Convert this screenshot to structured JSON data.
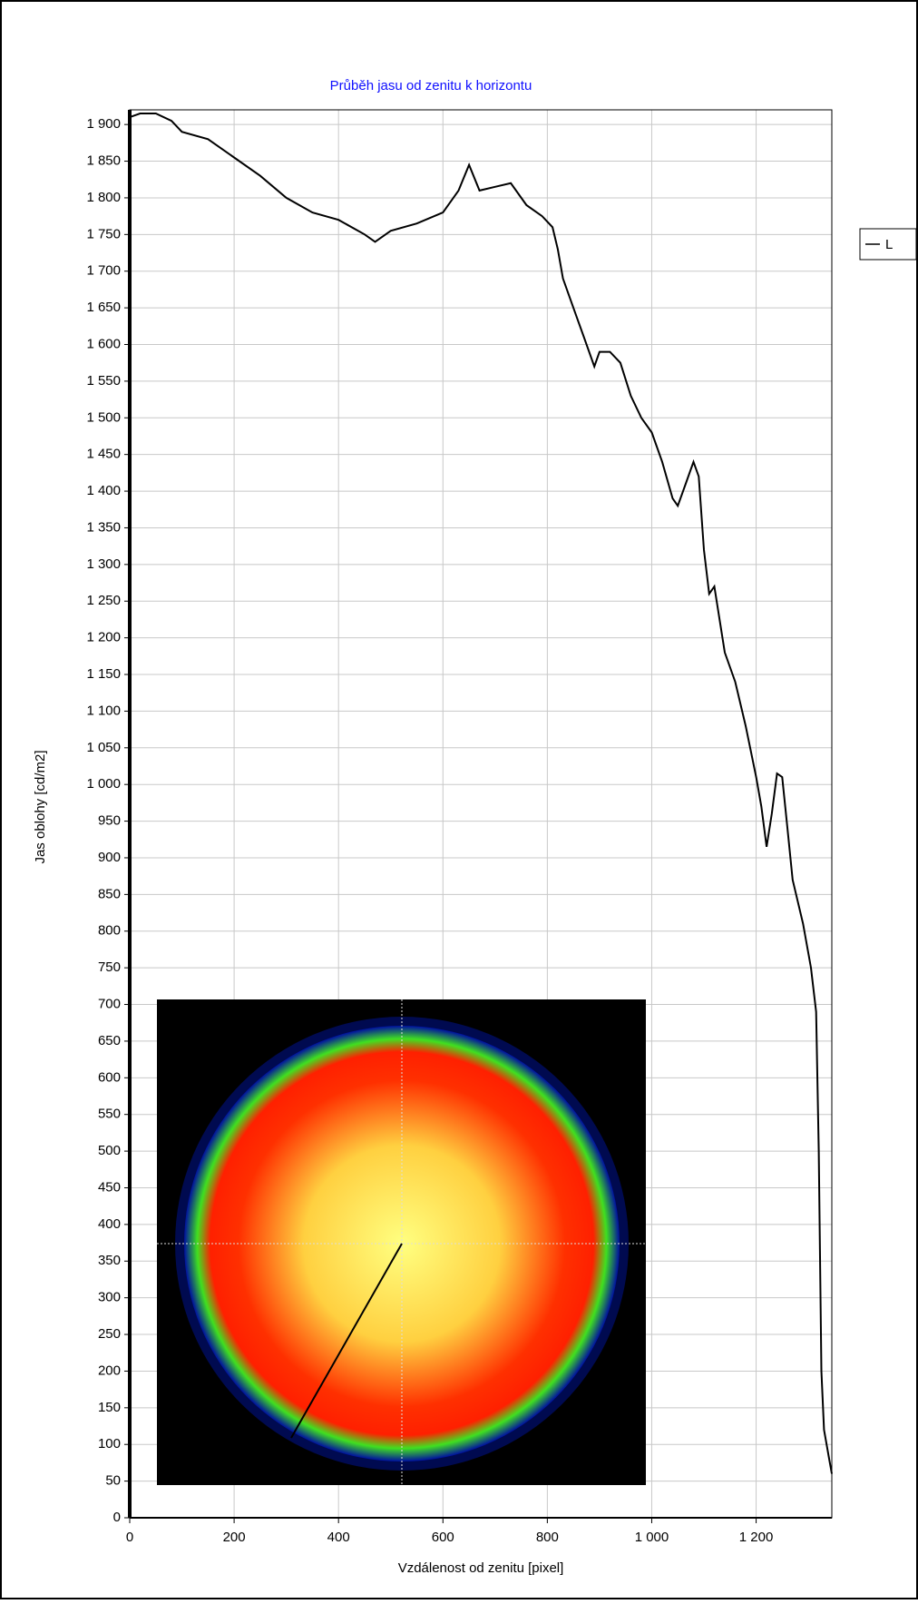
{
  "chart_data": {
    "type": "line",
    "title": "Průběh jasu od zenitu k horizontu",
    "x_label": "Vzdálenost od zenitu [pixel]",
    "y_label": "Jas oblohy [cd/m2]",
    "xlim": [
      0,
      1345
    ],
    "ylim": [
      0,
      1920
    ],
    "xticks": [
      0,
      200,
      400,
      600,
      800,
      {
        "value": 1000,
        "label": "1 000"
      },
      {
        "value": 1200,
        "label": "1 200"
      }
    ],
    "yticks": [
      0,
      50,
      100,
      150,
      200,
      250,
      300,
      350,
      400,
      450,
      500,
      550,
      600,
      650,
      700,
      750,
      800,
      850,
      900,
      950,
      {
        "value": 1000,
        "label": "1 000"
      },
      {
        "value": 1050,
        "label": "1 050"
      },
      {
        "value": 1100,
        "label": "1 100"
      },
      {
        "value": 1150,
        "label": "1 150"
      },
      {
        "value": 1200,
        "label": "1 200"
      },
      {
        "value": 1250,
        "label": "1 250"
      },
      {
        "value": 1300,
        "label": "1 300"
      },
      {
        "value": 1350,
        "label": "1 350"
      },
      {
        "value": 1400,
        "label": "1 400"
      },
      {
        "value": 1450,
        "label": "1 450"
      },
      {
        "value": 1500,
        "label": "1 500"
      },
      {
        "value": 1550,
        "label": "1 550"
      },
      {
        "value": 1600,
        "label": "1 600"
      },
      {
        "value": 1650,
        "label": "1 650"
      },
      {
        "value": 1700,
        "label": "1 700"
      },
      {
        "value": 1750,
        "label": "1 750"
      },
      {
        "value": 1800,
        "label": "1 800"
      },
      {
        "value": 1850,
        "label": "1 850"
      },
      {
        "value": 1900,
        "label": "1 900"
      }
    ],
    "grid": true,
    "legend": "right",
    "series": [
      {
        "name": "L",
        "color": "#000000",
        "x": [
          0,
          20,
          50,
          80,
          100,
          150,
          200,
          250,
          300,
          350,
          400,
          450,
          470,
          500,
          550,
          600,
          630,
          650,
          670,
          700,
          730,
          760,
          790,
          810,
          820,
          830,
          850,
          870,
          890,
          900,
          920,
          940,
          960,
          980,
          1000,
          1020,
          1040,
          1050,
          1065,
          1080,
          1090,
          1100,
          1110,
          1120,
          1140,
          1160,
          1180,
          1200,
          1210,
          1220,
          1230,
          1240,
          1250,
          1260,
          1270,
          1290,
          1305,
          1315,
          1320,
          1325,
          1330,
          1340,
          1345
        ],
        "values": [
          1910,
          1915,
          1915,
          1905,
          1890,
          1880,
          1855,
          1830,
          1800,
          1780,
          1770,
          1750,
          1740,
          1755,
          1765,
          1780,
          1810,
          1845,
          1810,
          1815,
          1820,
          1790,
          1775,
          1760,
          1730,
          1690,
          1650,
          1610,
          1570,
          1590,
          1590,
          1575,
          1530,
          1500,
          1480,
          1440,
          1390,
          1380,
          1410,
          1440,
          1420,
          1320,
          1260,
          1270,
          1180,
          1140,
          1080,
          1010,
          970,
          915,
          960,
          1015,
          1010,
          940,
          870,
          810,
          750,
          690,
          500,
          200,
          120,
          80,
          60
        ]
      }
    ]
  }
}
